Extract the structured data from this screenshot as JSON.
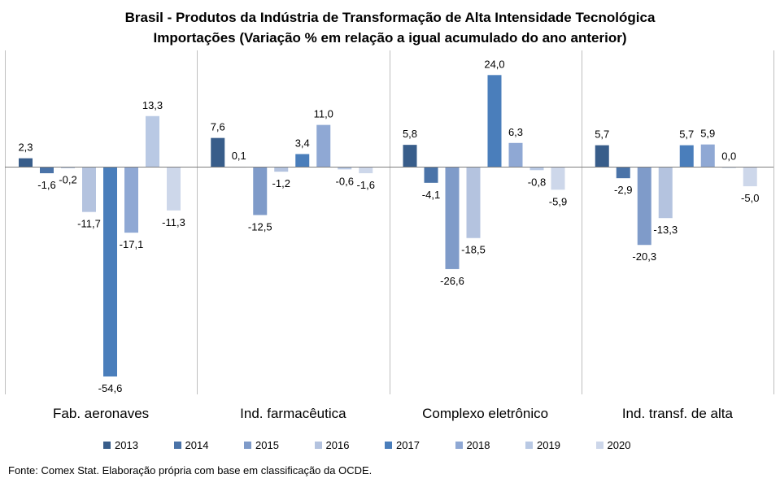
{
  "chart_data": {
    "type": "bar",
    "title": "Brasil - Produtos da Indústria de Transformação de Alta Intensidade Tecnológica",
    "subtitle": "Importações (Variação % em relação a igual acumulado do ano anterior)",
    "categories": [
      "Fab. aeronaves",
      "Ind. farmacêutica",
      "Complexo eletrônico",
      "Ind. transf. de alta"
    ],
    "series": [
      {
        "name": "2013",
        "color": "#385d8a",
        "values": [
          2.3,
          7.6,
          5.8,
          5.7
        ],
        "labels": [
          "2,3",
          "7,6",
          "5,8",
          "5,7"
        ]
      },
      {
        "name": "2014",
        "color": "#4a73a8",
        "values": [
          -1.6,
          0.1,
          -4.1,
          -2.9
        ],
        "labels": [
          "-1,6",
          "0,1",
          "-4,1",
          "-2,9"
        ]
      },
      {
        "name": "2015",
        "color": "#7f9bc9",
        "values": [
          -0.2,
          -12.5,
          -26.6,
          -20.3
        ],
        "labels": [
          "-0,2",
          "-12,5",
          "-26,6",
          "-20,3"
        ]
      },
      {
        "name": "2016",
        "color": "#b4c3df",
        "values": [
          -11.7,
          -1.2,
          -18.5,
          -13.3
        ],
        "labels": [
          "-11,7",
          "-1,2",
          "-18,5",
          "-13,3"
        ]
      },
      {
        "name": "2017",
        "color": "#4a7ebb",
        "values": [
          -54.6,
          3.4,
          24.0,
          5.7
        ],
        "labels": [
          "-54,6",
          "3,4",
          "24,0",
          "5,7"
        ]
      },
      {
        "name": "2018",
        "color": "#8fa8d4",
        "values": [
          -17.1,
          11.0,
          6.3,
          5.9
        ],
        "labels": [
          "-17,1",
          "11,0",
          "6,3",
          "5,9"
        ]
      },
      {
        "name": "2019",
        "color": "#b9c9e4",
        "values": [
          13.3,
          -0.6,
          -0.8,
          0.0
        ],
        "labels": [
          "13,3",
          "-0,6",
          "-0,8",
          "0,0"
        ]
      },
      {
        "name": "2020",
        "color": "#cdd7ea",
        "values": [
          -11.3,
          -1.6,
          -5.9,
          -5.0
        ],
        "labels": [
          "-11,3",
          "-1,6",
          "-5,9",
          "-5,0"
        ]
      }
    ],
    "ylim": [
      -60,
      30
    ],
    "grid": false,
    "legend_position": "bottom"
  },
  "source": "Fonte: Comex Stat. Elaboração própria com base em classificação da OCDE."
}
